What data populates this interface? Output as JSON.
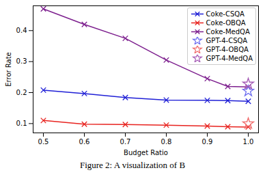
{
  "chart_data": {
    "type": "line",
    "x_label": "Budget Ratio",
    "y_label": "Error Rate",
    "caption": "Figure 2: A visualization of B",
    "x": [
      0.5,
      0.6,
      0.7,
      0.8,
      0.9,
      0.95,
      1.0
    ],
    "series": [
      {
        "name": "Coke-CSQA",
        "color": "#1f1fd6",
        "type": "line",
        "marker": "x",
        "line_style": "solid",
        "values": [
          0.208,
          0.197,
          0.184,
          0.176,
          0.175,
          0.174,
          0.172
        ]
      },
      {
        "name": "Coke-OBQA",
        "color": "#e8231f",
        "type": "line",
        "marker": "x",
        "line_style": "solid",
        "values": [
          0.11,
          0.098,
          0.097,
          0.095,
          0.092,
          0.09,
          0.089
        ]
      },
      {
        "name": "Coke-MedQA",
        "color": "#7d1f8e",
        "type": "line",
        "marker": "x",
        "line_style": "solid",
        "values": [
          0.47,
          0.42,
          0.375,
          0.305,
          0.245,
          0.22,
          0.218
        ]
      },
      {
        "name": "GPT-4-CSQA",
        "color": "#6b6bf0",
        "type": "scatter",
        "marker": "star",
        "values": [
          null,
          null,
          null,
          null,
          null,
          null,
          0.205
        ]
      },
      {
        "name": "GPT-4-OBQA",
        "color": "#f06a6a",
        "type": "scatter",
        "marker": "star",
        "values": [
          null,
          null,
          null,
          null,
          null,
          null,
          0.1
        ]
      },
      {
        "name": "GPT-4-MedQA",
        "color": "#a55bb5",
        "type": "scatter",
        "marker": "star",
        "values": [
          null,
          null,
          null,
          null,
          null,
          null,
          0.228
        ]
      }
    ],
    "xlim": [
      0.475,
      1.025
    ],
    "ylim": [
      0.07,
      0.48
    ],
    "xticks": [
      0.5,
      0.6,
      0.7,
      0.8,
      0.9,
      {
        "value": 1.0,
        "label": "1.0"
      }
    ],
    "yticks": [
      0.1,
      0.2,
      0.3,
      0.4
    ],
    "grid": false,
    "legend": "upper right"
  }
}
